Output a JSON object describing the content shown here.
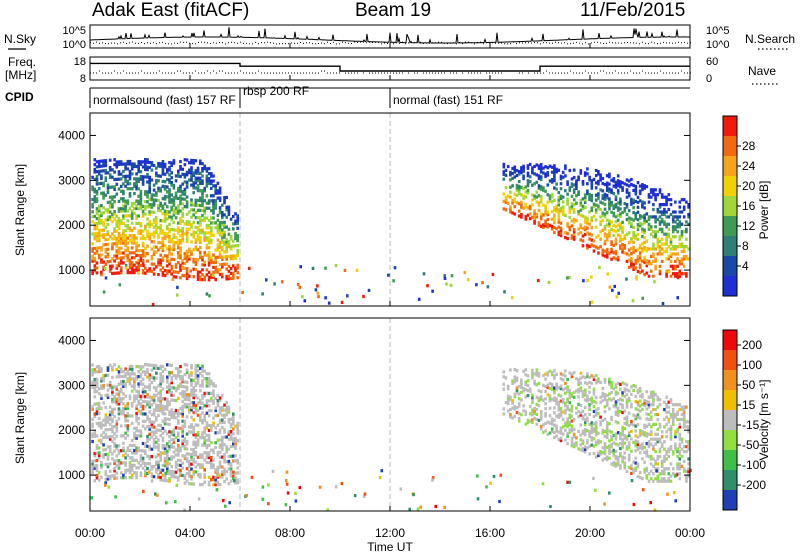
{
  "header": {
    "station": "Adak East (fitACF)",
    "beam": "Beam 19",
    "date": "11/Feb/2015"
  },
  "side_labels": {
    "nsky": "N.Sky",
    "freq_line1": "Freq.",
    "freq_line2": "[MHz]",
    "cpid": "CPID",
    "nsearch": "N.Search",
    "nave": "Nave"
  },
  "cpid_segments": [
    {
      "label": "normalsound (fast) 157 RF",
      "start_h": 0,
      "end_h": 6
    },
    {
      "label": "rbsp 200 RF",
      "start_h": 6,
      "end_h": 12
    },
    {
      "label": "normal (fast) 151 RF",
      "start_h": 12,
      "end_h": 24
    }
  ],
  "colors": {
    "power_scale": [
      "#1f2fd6",
      "#1a48a8",
      "#2f7f76",
      "#3f9a52",
      "#9fd63a",
      "#f0d000",
      "#f7a31b",
      "#f26a0f",
      "#f21a0a"
    ],
    "velocity_scale": [
      "#1e3fb5",
      "#2f8f6b",
      "#3fbf4a",
      "#8fe040",
      "#bdbdbd",
      "#f0c000",
      "#f09020",
      "#f05010",
      "#ee0a0a"
    ],
    "cursor_line": "#bbbbbb"
  },
  "chart_data": [
    {
      "type": "line",
      "name": "N.Sky / N.Search",
      "ylabel_left": "N.Sky",
      "ylabel_right": "N.Search",
      "yticks_left": [
        "10^5",
        "10^0"
      ],
      "yticks_right": [
        "10^5",
        "10^0"
      ],
      "xlim": [
        0,
        24
      ]
    },
    {
      "type": "line",
      "name": "Frequency / Nave",
      "ylabel_left": "Freq. [MHz]",
      "ylabel_right": "Nave",
      "yticks_left": [
        "18",
        "8"
      ],
      "yticks_right": [
        "60",
        "0"
      ],
      "ylim_left": [
        8,
        18
      ],
      "ylim_right": [
        0,
        60
      ],
      "freq_steps": [
        {
          "start_h": 0,
          "end_h": 6,
          "mhz": 15.2
        },
        {
          "start_h": 6,
          "end_h": 10,
          "mhz": 14.0
        },
        {
          "start_h": 10,
          "end_h": 18,
          "mhz": 11.9
        },
        {
          "start_h": 18,
          "end_h": 24,
          "mhz": 14.0
        }
      ],
      "xlim": [
        0,
        24
      ]
    },
    {
      "type": "heatmap",
      "name": "power",
      "ylabel": "Slant Range [km]",
      "yticks": [
        1000,
        2000,
        3000,
        4000
      ],
      "ylim": [
        200,
        4500
      ],
      "colorbar_label": "Power [dB]",
      "colorbar_ticks": [
        "28",
        "24",
        "20",
        "16",
        "12",
        "8",
        "4"
      ],
      "xlim": [
        0,
        24
      ]
    },
    {
      "type": "heatmap",
      "name": "velocity",
      "ylabel": "Slant Range [km]",
      "yticks": [
        1000,
        2000,
        3000,
        4000
      ],
      "ylim": [
        200,
        4500
      ],
      "colorbar_label": "Velocity [m s⁻¹]",
      "colorbar_ticks": [
        "200",
        "100",
        "50",
        "15",
        "-15",
        "-50",
        "-100",
        "-200"
      ],
      "xlim": [
        0,
        24
      ]
    }
  ],
  "x_axis": {
    "ticks": [
      "00:00",
      "04:00",
      "08:00",
      "12:00",
      "16:00",
      "20:00",
      "00:00"
    ],
    "label": "Time UT"
  }
}
